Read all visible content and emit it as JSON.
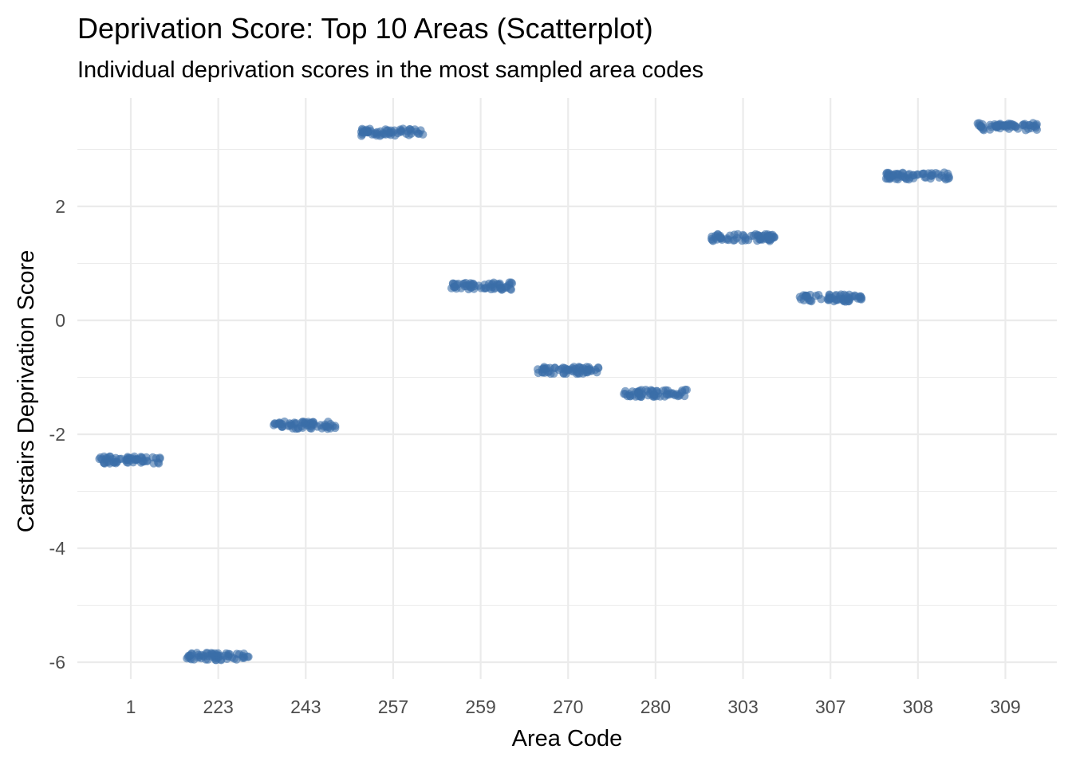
{
  "chart_data": {
    "type": "scatter",
    "title": "Deprivation Score: Top 10 Areas (Scatterplot)",
    "subtitle": "Individual deprivation scores in the most sampled area codes",
    "xlabel": "Area Code",
    "ylabel": "Carstairs Deprivation Score",
    "categories": [
      "1",
      "223",
      "243",
      "257",
      "259",
      "270",
      "280",
      "303",
      "307",
      "308",
      "309"
    ],
    "values": [
      -2.45,
      -5.9,
      -1.84,
      3.3,
      0.6,
      -0.88,
      -1.28,
      1.45,
      0.39,
      2.53,
      3.4
    ],
    "y_ticks": [
      2,
      0,
      -2,
      -4,
      -6
    ],
    "y_tick_labels": [
      "2",
      "0",
      "-2",
      "-4",
      "-6"
    ],
    "ylim": [
      -6.1,
      3.6
    ],
    "grid": true,
    "point_color": "#3a6ea8"
  }
}
